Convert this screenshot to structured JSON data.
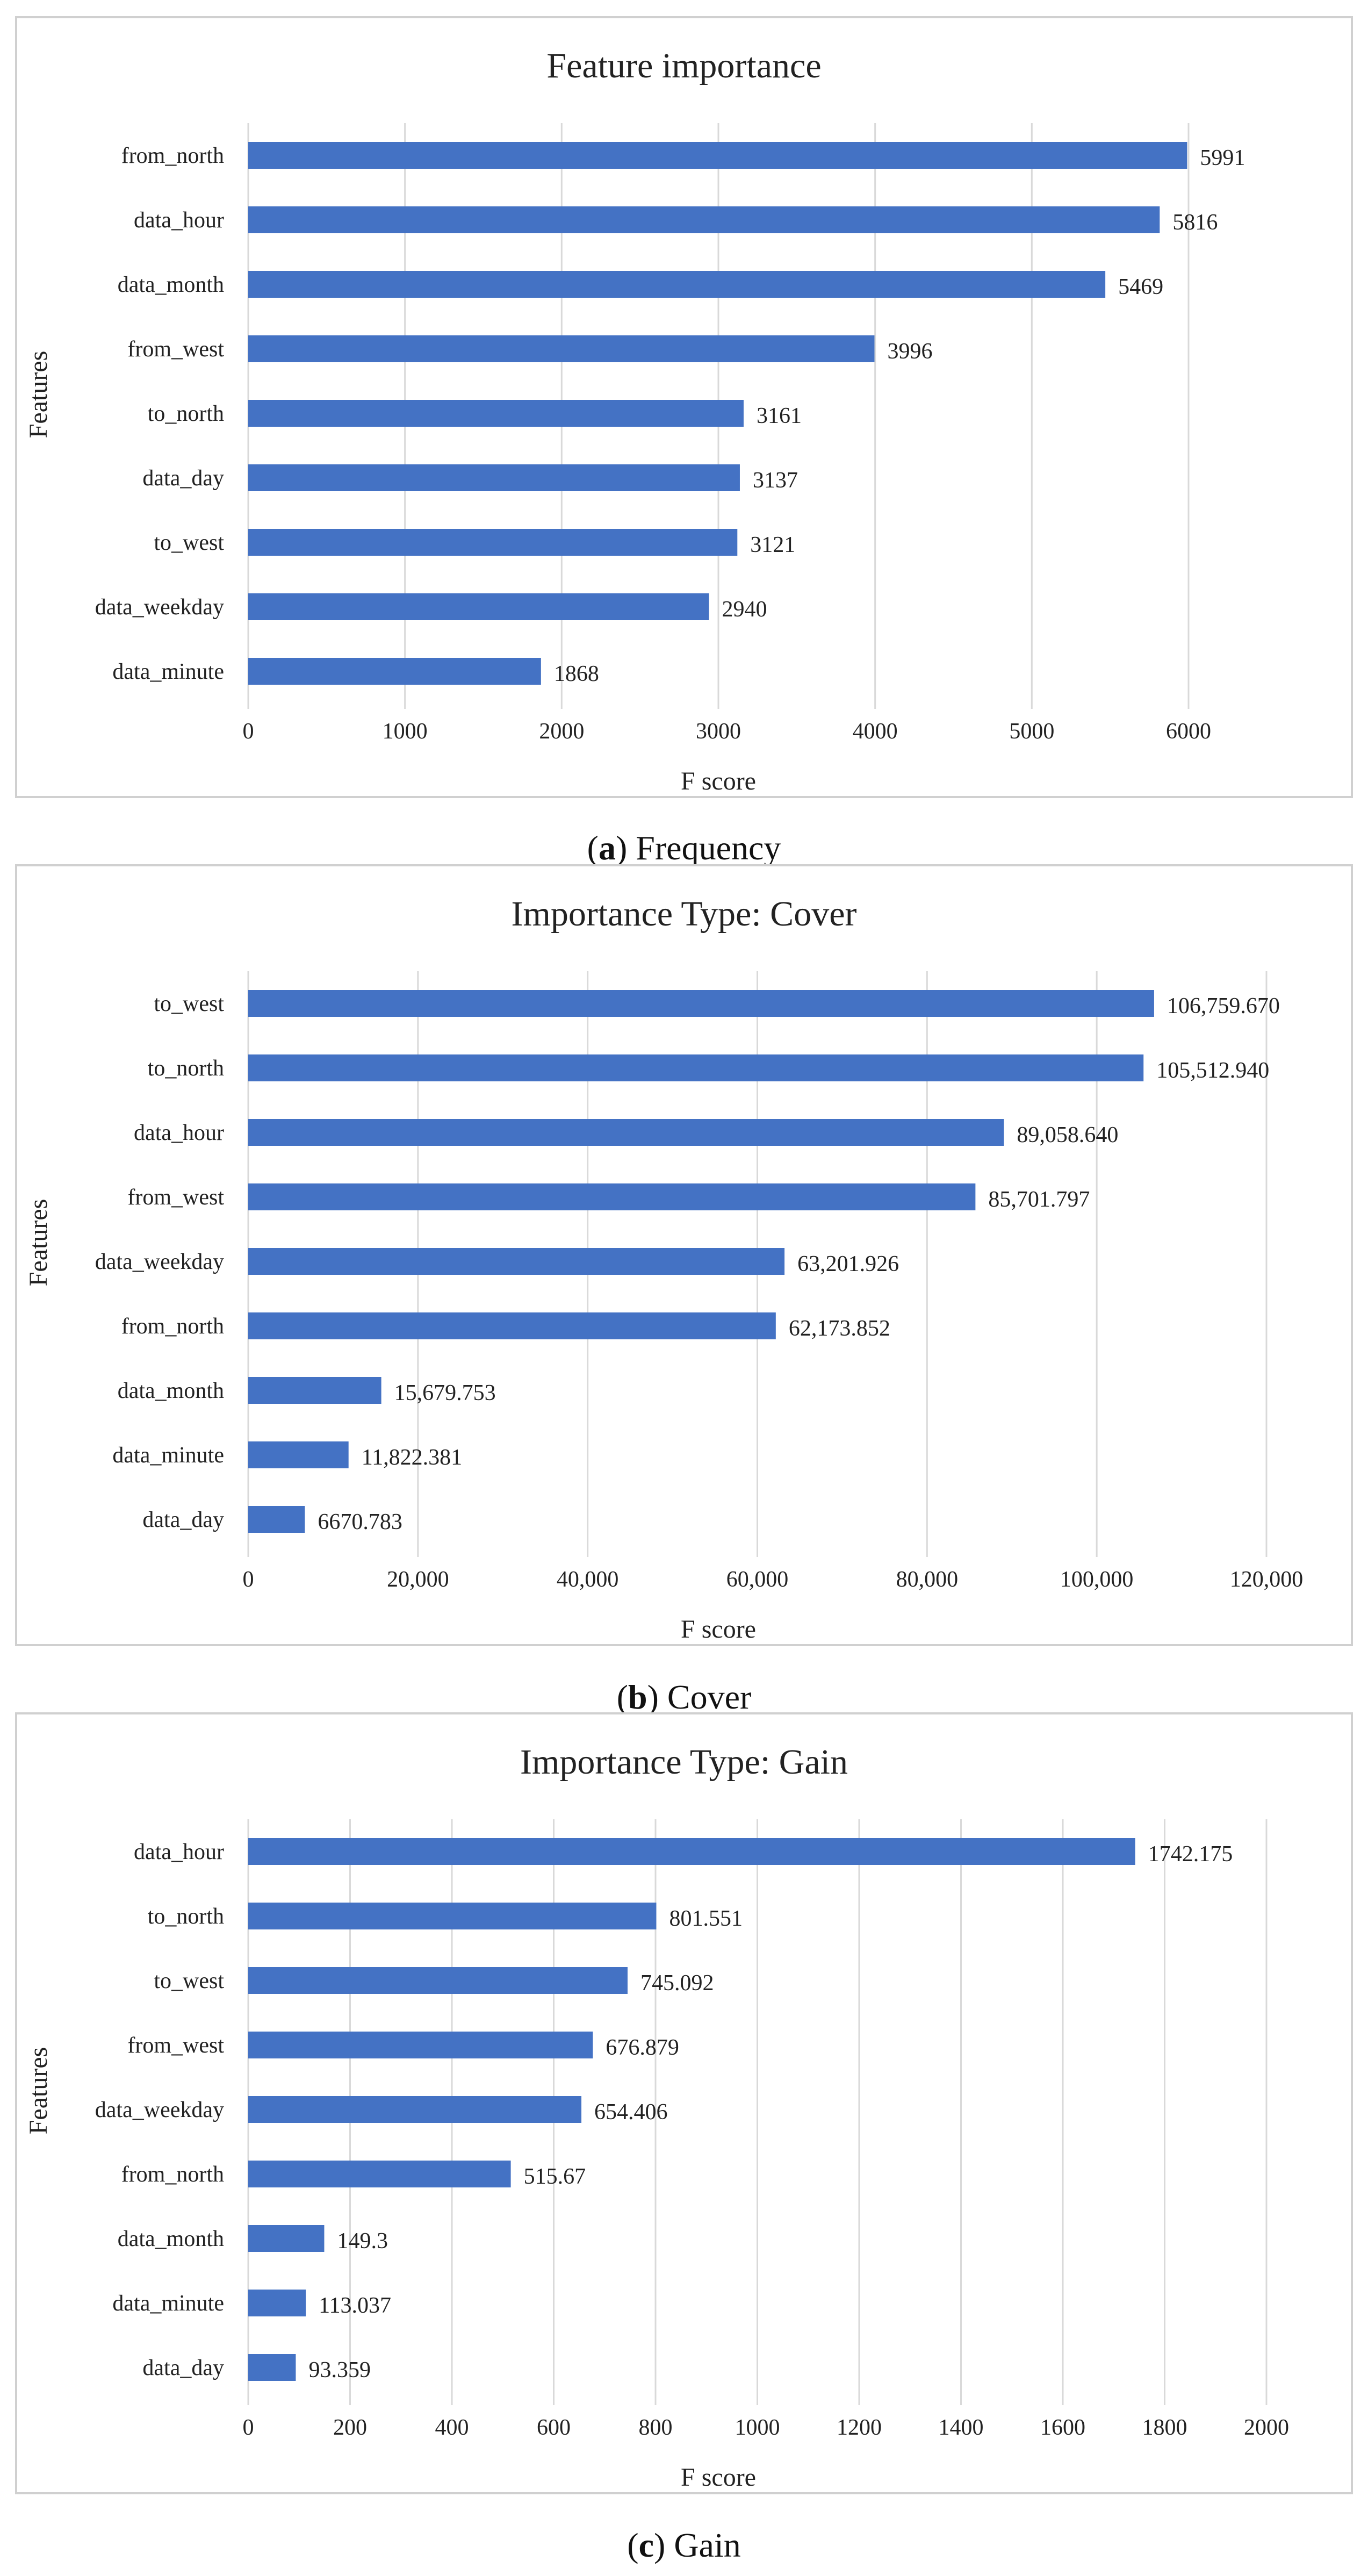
{
  "colors": {
    "bar": "#4472c4",
    "grid": "#d9d9d9",
    "border": "#d0d0d0"
  },
  "chart_data": [
    {
      "type": "bar",
      "orientation": "horizontal",
      "title": "Feature importance",
      "xlabel": "F score",
      "ylabel": "Features",
      "xlim": [
        0,
        6000
      ],
      "xticks": [
        0,
        1000,
        2000,
        3000,
        4000,
        5000,
        6000
      ],
      "xtick_labels": [
        "0",
        "1000",
        "2000",
        "3000",
        "4000",
        "5000",
        "6000"
      ],
      "grid": true,
      "categories": [
        "from_north",
        "data_hour",
        "data_month",
        "from_west",
        "to_north",
        "data_day",
        "to_west",
        "data_weekday",
        "data_minute"
      ],
      "values": [
        5991,
        5816,
        5469,
        3996,
        3161,
        3137,
        3121,
        2940,
        1868
      ],
      "value_labels": [
        "5991",
        "5816",
        "5469",
        "3996",
        "3161",
        "3137",
        "3121",
        "2940",
        "1868"
      ]
    },
    {
      "type": "bar",
      "orientation": "horizontal",
      "title": "Importance Type: Cover",
      "xlabel": "F score",
      "ylabel": "Features",
      "xlim": [
        0,
        120000
      ],
      "xticks": [
        0,
        20000,
        40000,
        60000,
        80000,
        100000,
        120000
      ],
      "xtick_labels": [
        "0",
        "20,000",
        "40,000",
        "60,000",
        "80,000",
        "100,000",
        "120,000"
      ],
      "grid": true,
      "categories": [
        "to_west",
        "to_north",
        "data_hour",
        "from_west",
        "data_weekday",
        "from_north",
        "data_month",
        "data_minute",
        "data_day"
      ],
      "values": [
        106759.67,
        105512.94,
        89058.64,
        85701.797,
        63201.926,
        62173.852,
        15679.753,
        11822.381,
        6670.783
      ],
      "value_labels": [
        "106,759.670",
        "105,512.940",
        "89,058.640",
        "85,701.797",
        "63,201.926",
        "62,173.852",
        "15,679.753",
        "11,822.381",
        "6670.783"
      ]
    },
    {
      "type": "bar",
      "orientation": "horizontal",
      "title": "Importance Type: Gain",
      "xlabel": "F score",
      "ylabel": "Features",
      "xlim": [
        0,
        2000
      ],
      "xticks": [
        0,
        200,
        400,
        600,
        800,
        1000,
        1200,
        1400,
        1600,
        1800,
        2000
      ],
      "xtick_labels": [
        "0",
        "200",
        "400",
        "600",
        "800",
        "1000",
        "1200",
        "1400",
        "1600",
        "1800",
        "2000"
      ],
      "grid": true,
      "categories": [
        "data_hour",
        "to_north",
        "to_west",
        "from_west",
        "data_weekday",
        "from_north",
        "data_month",
        "data_minute",
        "data_day"
      ],
      "values": [
        1742.175,
        801.551,
        745.092,
        676.879,
        654.406,
        515.67,
        149.3,
        113.037,
        93.359
      ],
      "value_labels": [
        "1742.175",
        "801.551",
        "745.092",
        "676.879",
        "654.406",
        "515.67",
        "149.3",
        "113.037",
        "93.359"
      ]
    }
  ],
  "captions": [
    {
      "letter": "a",
      "text": "Frequency"
    },
    {
      "letter": "b",
      "text": "Cover"
    },
    {
      "letter": "c",
      "text": "Gain"
    }
  ]
}
